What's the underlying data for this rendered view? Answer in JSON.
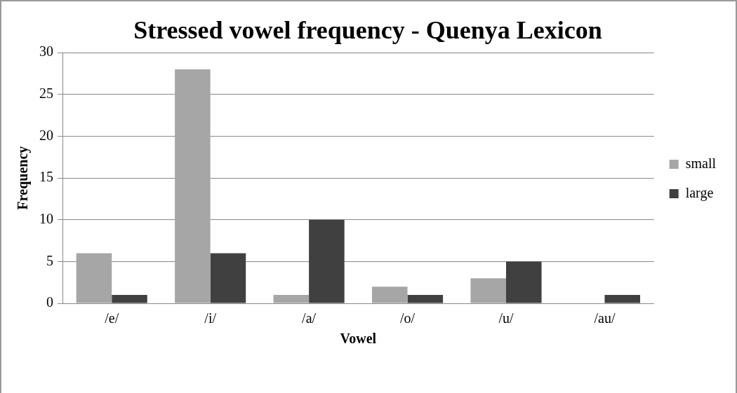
{
  "chart_data": {
    "type": "bar",
    "title": "Stressed vowel frequency - Quenya Lexicon",
    "xlabel": "Vowel",
    "ylabel": "Frequency",
    "categories": [
      "/e/",
      "/i/",
      "/a/",
      "/o/",
      "/u/",
      "/au/"
    ],
    "series": [
      {
        "name": "small",
        "color": "#a6a6a6",
        "values": [
          6,
          28,
          1,
          2,
          3,
          0
        ]
      },
      {
        "name": "large",
        "color": "#404040",
        "values": [
          1,
          6,
          10,
          1,
          5,
          1
        ]
      }
    ],
    "ylim": [
      0,
      30
    ],
    "yticks": [
      0,
      5,
      10,
      15,
      20,
      25,
      30
    ],
    "grid": "y",
    "legend": "right"
  }
}
